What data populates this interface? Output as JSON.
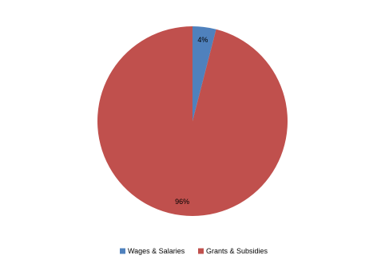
{
  "chart_data": {
    "type": "pie",
    "categories": [
      "Wages & Salaries",
      "Grants & Subsidies"
    ],
    "values": [
      4,
      96
    ],
    "value_labels": [
      "4%",
      "96%"
    ],
    "colors": [
      "#4f81bd",
      "#c0504d"
    ],
    "legend": "bottom"
  }
}
